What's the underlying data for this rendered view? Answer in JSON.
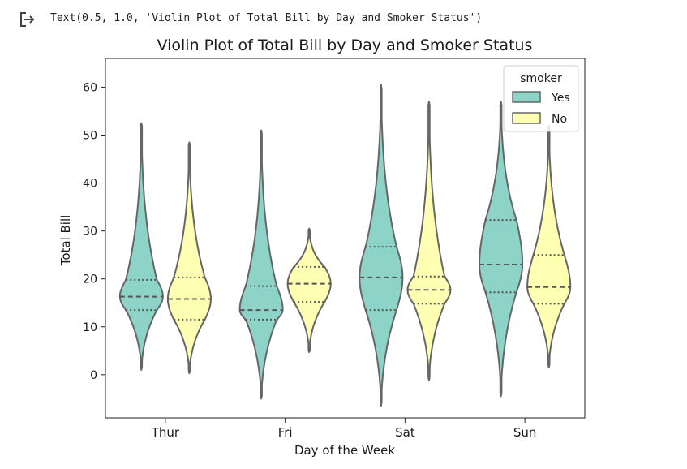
{
  "output": {
    "repr_text": "Text(0.5, 1.0, 'Violin Plot of Total Bill by Day and Smoker Status')",
    "icon": "output-arrow-icon"
  },
  "chart_data": {
    "type": "violin",
    "title": "Violin Plot of Total Bill by Day and Smoker Status",
    "xlabel": "Day of the Week",
    "ylabel": "Total Bill",
    "categories": [
      "Thur",
      "Fri",
      "Sat",
      "Sun"
    ],
    "ylim": [
      -9,
      66
    ],
    "yticks": [
      0,
      10,
      20,
      30,
      40,
      50,
      60
    ],
    "grid": false,
    "legend": {
      "title": "smoker",
      "position": "top-right",
      "entries": [
        "Yes",
        "No"
      ]
    },
    "colors": {
      "Yes": "#8dd3c7",
      "No": "#ffffb3",
      "outline": "#666666"
    },
    "series": [
      {
        "name": "Yes",
        "min": [
          1,
          -5,
          -6.5,
          -4.5
        ],
        "max": [
          52.5,
          51,
          60.5,
          57
        ],
        "q1": [
          13.5,
          11.5,
          13.5,
          17.2
        ],
        "median": [
          16.3,
          13.5,
          20.3,
          23
        ],
        "q3": [
          19.8,
          18.5,
          26.7,
          32.3
        ]
      },
      {
        "name": "No",
        "min": [
          0.3,
          4.7,
          -1.2,
          1.5
        ],
        "max": [
          48.5,
          30.5,
          57,
          52
        ],
        "q1": [
          11.5,
          15.2,
          14.8,
          14.8
        ],
        "median": [
          15.8,
          19,
          17.7,
          18.3
        ],
        "q3": [
          20.3,
          22.5,
          20.5,
          25
        ]
      }
    ]
  }
}
